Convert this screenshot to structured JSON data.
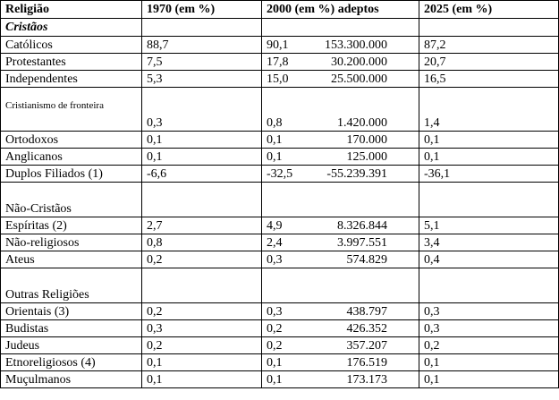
{
  "header": {
    "col_religion": "Religião",
    "col_1970": "1970 (em %)",
    "col_2000": "2000 (em %) adeptos",
    "col_2025": "2025 (em %)"
  },
  "sections": {
    "cristaos": "Cristãos",
    "nao_cristaos": "Não-Cristãos",
    "outras": "Outras Religiões"
  },
  "rows_cristaos": [
    {
      "name": "Católicos",
      "y1970": "88,7",
      "y2000": "90,1",
      "adepts": "153.300.000",
      "y2025": "87,2"
    },
    {
      "name": "Protestantes",
      "y1970": "7,5",
      "y2000": "17,8",
      "adepts": "30.200.000",
      "y2025": "20,7"
    },
    {
      "name": "Independentes",
      "y1970": "5,3",
      "y2000": "15,0",
      "adepts": "25.500.000",
      "y2025": "16,5"
    },
    {
      "name": "Cristianismo de fronteira",
      "y1970": "0,3",
      "y2000": "0,8",
      "adepts": "1.420.000",
      "y2025": "1,4"
    },
    {
      "name": "Ortodoxos",
      "y1970": "0,1",
      "y2000": "0,1",
      "adepts": "170.000",
      "y2025": "0,1"
    },
    {
      "name": "Anglicanos",
      "y1970": "0,1",
      "y2000": "0,1",
      "adepts": "125.000",
      "y2025": "0,1"
    },
    {
      "name": "Duplos Filiados (1)",
      "y1970": "-6,6",
      "y2000": "-32,5",
      "adepts": "-55.239.391",
      "y2025": "-36,1"
    }
  ],
  "rows_nao_cristaos": [
    {
      "name": "Espíritas (2)",
      "y1970": "2,7",
      "y2000": "4,9",
      "adepts": "8.326.844",
      "y2025": "5,1"
    },
    {
      "name": "Não-religiosos",
      "y1970": "0,8",
      "y2000": "2,4",
      "adepts": "3.997.551",
      "y2025": "3,4"
    },
    {
      "name": "Ateus",
      "y1970": "0,2",
      "y2000": "0,3",
      "adepts": "574.829",
      "y2025": "0,4"
    }
  ],
  "rows_outras": [
    {
      "name": "Orientais (3)",
      "y1970": "0,2",
      "y2000": "0,3",
      "adepts": "438.797",
      "y2025": "0,3"
    },
    {
      "name": "Budistas",
      "y1970": "0,3",
      "y2000": "0,2",
      "adepts": "426.352",
      "y2025": "0,3"
    },
    {
      "name": "Judeus",
      "y1970": "0,2",
      "y2000": "0,2",
      "adepts": "357.207",
      "y2025": "0,2"
    },
    {
      "name": "Etnoreligiosos (4)",
      "y1970": "0,1",
      "y2000": "0,1",
      "adepts": "176.519",
      "y2025": "0,1"
    },
    {
      "name": "Muçulmanos",
      "y1970": "0,1",
      "y2000": "0,1",
      "adepts": "173.173",
      "y2025": "0,1"
    }
  ]
}
